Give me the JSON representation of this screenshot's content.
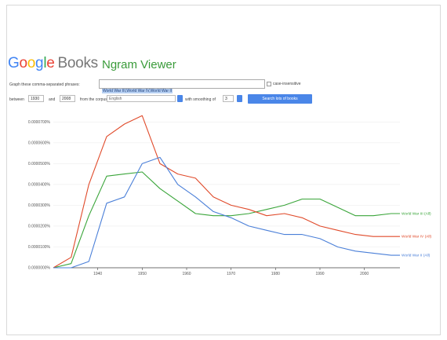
{
  "header": {
    "logo_letters": [
      "G",
      "o",
      "o",
      "g",
      "l",
      "e"
    ],
    "logo_books": "Books",
    "app_title": "Ngram Viewer"
  },
  "form": {
    "query_label": "Graph these comma-separated phrases:",
    "query_value": "World War III,World War IV,World War II",
    "case_label": "case-insensitive",
    "between_label": "between",
    "year_start": "1930",
    "and_label": "and",
    "year_end": "2008",
    "corpus_label": "from the corpus",
    "corpus_value": "English",
    "smoothing_label": "with smoothing of",
    "smoothing_value": "3",
    "search_button": "Search lots of books"
  },
  "chart_data": {
    "type": "line",
    "x": [
      1930,
      1934,
      1938,
      1942,
      1946,
      1950,
      1954,
      1958,
      1962,
      1966,
      1970,
      1974,
      1978,
      1982,
      1986,
      1990,
      1994,
      1998,
      2002,
      2006,
      2008
    ],
    "yticks": [
      "0.0000700%",
      "0.0000600%",
      "0.0000500%",
      "0.0000400%",
      "0.0000300%",
      "0.0000200%",
      "0.0000100%",
      "0.0000000%"
    ],
    "xticks": [
      "1940",
      "1950",
      "1960",
      "1970",
      "1980",
      "1990",
      "2000"
    ],
    "ylim": [
      0,
      7.2
    ],
    "y_unit_note": "values in units of 0.00001%",
    "series": [
      {
        "name": "World War III (All)",
        "color": "#3aa53a",
        "values": [
          0,
          0.2,
          2.5,
          4.4,
          4.5,
          4.6,
          3.8,
          3.2,
          2.6,
          2.5,
          2.5,
          2.6,
          2.8,
          3.0,
          3.3,
          3.3,
          2.9,
          2.5,
          2.5,
          2.6,
          2.6
        ]
      },
      {
        "name": "World War IV (All)",
        "color": "#e04a2a",
        "values": [
          0,
          0.5,
          4.0,
          6.3,
          6.9,
          7.3,
          5.0,
          4.5,
          4.3,
          3.4,
          3.0,
          2.8,
          2.5,
          2.6,
          2.4,
          2.0,
          1.8,
          1.6,
          1.5,
          1.5,
          1.5
        ]
      },
      {
        "name": "World War II (All)",
        "color": "#4a7fd8",
        "values": [
          0,
          0,
          0.3,
          3.1,
          3.4,
          5.0,
          5.3,
          4.0,
          3.4,
          2.7,
          2.4,
          2.0,
          1.8,
          1.6,
          1.6,
          1.4,
          1.0,
          0.8,
          0.7,
          0.6,
          0.6
        ]
      }
    ]
  }
}
